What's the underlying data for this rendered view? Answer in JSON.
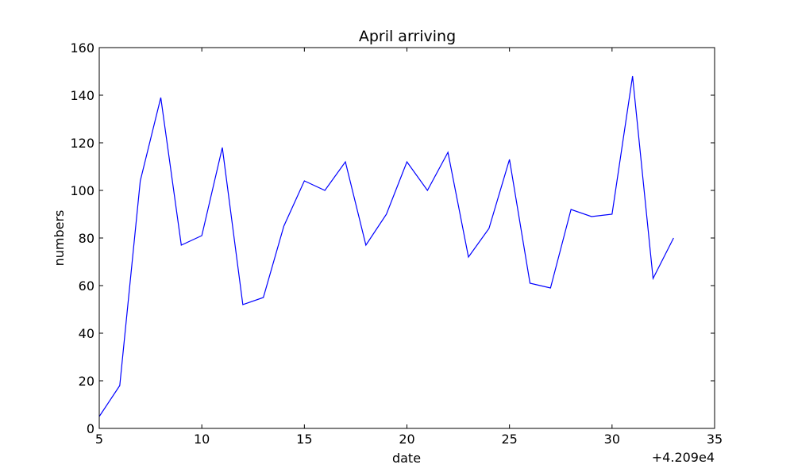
{
  "chart_data": {
    "type": "line",
    "title": "April arriving",
    "xlabel": "date",
    "ylabel": "numbers",
    "x_offset_label": "+4.209e4",
    "xlim": [
      5,
      35
    ],
    "ylim": [
      0,
      160
    ],
    "x_ticks": [
      5,
      10,
      15,
      20,
      25,
      30,
      35
    ],
    "y_ticks": [
      0,
      20,
      40,
      60,
      80,
      100,
      120,
      140,
      160
    ],
    "grid": false,
    "line_color": "#0000ff",
    "series": [
      {
        "x": [
          5,
          6,
          7,
          8,
          9,
          10,
          11,
          12,
          13,
          14,
          15,
          16,
          17,
          18,
          19,
          20,
          21,
          22,
          23,
          24,
          25,
          26,
          27,
          28,
          29,
          30,
          31,
          32,
          33
        ],
        "values": [
          5,
          18,
          104,
          139,
          77,
          81,
          118,
          52,
          55,
          85,
          104,
          100,
          112,
          77,
          90,
          112,
          100,
          116,
          72,
          84,
          113,
          61,
          59,
          92,
          89,
          90,
          148,
          63,
          80
        ]
      }
    ]
  }
}
